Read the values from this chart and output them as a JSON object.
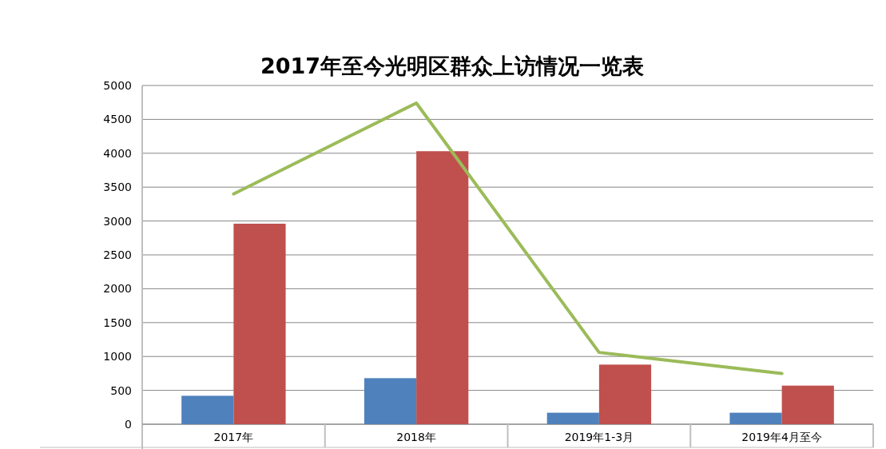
{
  "chart_data": {
    "type": "bar",
    "title": "2017年至今光明区群众上访情况一览表",
    "categories": [
      "2017年",
      "2018年",
      "2019年1-3月",
      "2019年4月至今"
    ],
    "series": [
      {
        "color": "#4f81bd",
        "values": [
          420,
          680,
          170,
          170
        ]
      },
      {
        "color": "#c0504d",
        "values": [
          2960,
          4030,
          880,
          570
        ]
      },
      {
        "type": "line",
        "color": "#9bbb59",
        "values": [
          3400,
          4740,
          1060,
          750
        ]
      }
    ],
    "ylim": [
      0,
      5000
    ],
    "yticks": [
      0,
      500,
      1000,
      1500,
      2000,
      2500,
      3000,
      3500,
      4000,
      4500,
      5000
    ],
    "grid": "y"
  }
}
